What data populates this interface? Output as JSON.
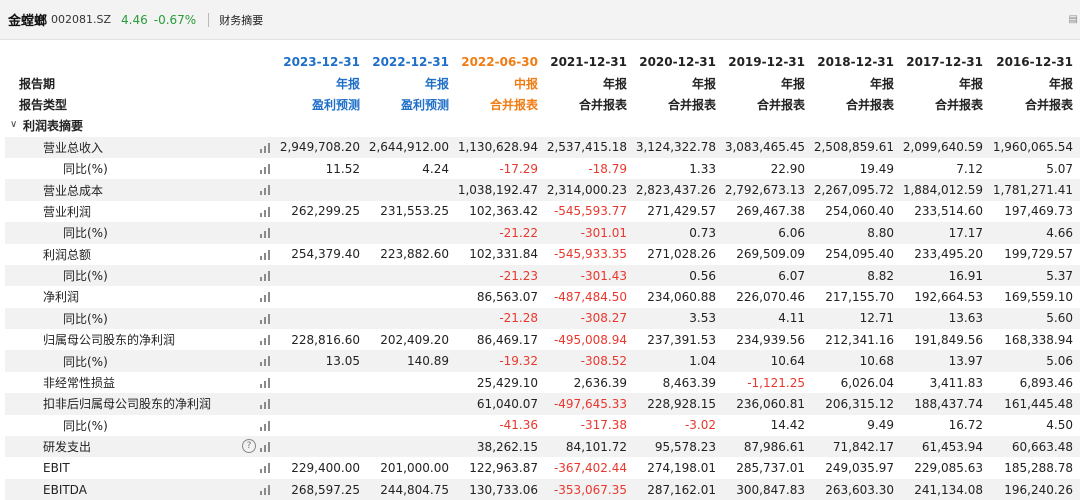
{
  "header": {
    "name": "金螳螂",
    "code": "002081.SZ",
    "price": "4.46",
    "change": "-0.67%",
    "section": "财务摘要"
  },
  "columns": [
    {
      "date": "2023-12-31",
      "period": "年报",
      "type": "盈利预测",
      "color": "blue"
    },
    {
      "date": "2022-12-31",
      "period": "年报",
      "type": "盈利预测",
      "color": "blue"
    },
    {
      "date": "2022-06-30",
      "period": "中报",
      "type": "合并报表",
      "color": "orange"
    },
    {
      "date": "2021-12-31",
      "period": "年报",
      "type": "合并报表",
      "color": "black"
    },
    {
      "date": "2020-12-31",
      "period": "年报",
      "type": "合并报表",
      "color": "black"
    },
    {
      "date": "2019-12-31",
      "period": "年报",
      "type": "合并报表",
      "color": "black"
    },
    {
      "date": "2018-12-31",
      "period": "年报",
      "type": "合并报表",
      "color": "black"
    },
    {
      "date": "2017-12-31",
      "period": "年报",
      "type": "合并报表",
      "color": "black"
    },
    {
      "date": "2016-12-31",
      "period": "年报",
      "type": "合并报表",
      "color": "black"
    }
  ],
  "labels": {
    "period": "报告期",
    "type": "报告类型",
    "group": "利润表摘要"
  },
  "rows": [
    {
      "label": "营业总收入",
      "level": 1,
      "values": [
        "2,949,708.20",
        "2,644,912.00",
        "1,130,628.94",
        "2,537,415.18",
        "3,124,322.78",
        "3,083,465.45",
        "2,508,859.61",
        "2,099,640.59",
        "1,960,065.54"
      ]
    },
    {
      "label": "同比(%)",
      "level": 2,
      "values": [
        "11.52",
        "4.24",
        "-17.29",
        "-18.79",
        "1.33",
        "22.90",
        "19.49",
        "7.12",
        "5.07"
      ]
    },
    {
      "label": "营业总成本",
      "level": 1,
      "values": [
        "",
        "",
        "1,038,192.47",
        "2,314,000.23",
        "2,823,437.26",
        "2,792,673.13",
        "2,267,095.72",
        "1,884,012.59",
        "1,781,271.41"
      ]
    },
    {
      "label": "营业利润",
      "level": 1,
      "values": [
        "262,299.25",
        "231,553.25",
        "102,363.42",
        "-545,593.77",
        "271,429.57",
        "269,467.38",
        "254,060.40",
        "233,514.60",
        "197,469.73"
      ]
    },
    {
      "label": "同比(%)",
      "level": 2,
      "values": [
        "",
        "",
        "-21.22",
        "-301.01",
        "0.73",
        "6.06",
        "8.80",
        "17.17",
        "4.66"
      ]
    },
    {
      "label": "利润总额",
      "level": 1,
      "values": [
        "254,379.40",
        "223,882.60",
        "102,331.84",
        "-545,933.35",
        "271,028.26",
        "269,509.09",
        "254,095.40",
        "233,495.20",
        "199,729.57"
      ]
    },
    {
      "label": "同比(%)",
      "level": 2,
      "values": [
        "",
        "",
        "-21.23",
        "-301.43",
        "0.56",
        "6.07",
        "8.82",
        "16.91",
        "5.37"
      ]
    },
    {
      "label": "净利润",
      "level": 1,
      "values": [
        "",
        "",
        "86,563.07",
        "-487,484.50",
        "234,060.88",
        "226,070.46",
        "217,155.70",
        "192,664.53",
        "169,559.10"
      ]
    },
    {
      "label": "同比(%)",
      "level": 2,
      "values": [
        "",
        "",
        "-21.28",
        "-308.27",
        "3.53",
        "4.11",
        "12.71",
        "13.63",
        "5.60"
      ]
    },
    {
      "label": "归属母公司股东的净利润",
      "level": 1,
      "values": [
        "228,816.60",
        "202,409.20",
        "86,469.17",
        "-495,008.94",
        "237,391.53",
        "234,939.56",
        "212,341.16",
        "191,849.56",
        "168,338.94"
      ]
    },
    {
      "label": "同比(%)",
      "level": 2,
      "values": [
        "13.05",
        "140.89",
        "-19.32",
        "-308.52",
        "1.04",
        "10.64",
        "10.68",
        "13.97",
        "5.06"
      ]
    },
    {
      "label": "非经常性损益",
      "level": 1,
      "values": [
        "",
        "",
        "25,429.10",
        "2,636.39",
        "8,463.39",
        "-1,121.25",
        "6,026.04",
        "3,411.83",
        "6,893.46"
      ]
    },
    {
      "label": "扣非后归属母公司股东的净利润",
      "level": 1,
      "values": [
        "",
        "",
        "61,040.07",
        "-497,645.33",
        "228,928.15",
        "236,060.81",
        "206,315.12",
        "188,437.74",
        "161,445.48"
      ]
    },
    {
      "label": "同比(%)",
      "level": 2,
      "values": [
        "",
        "",
        "-41.36",
        "-317.38",
        "-3.02",
        "14.42",
        "9.49",
        "16.72",
        "4.50"
      ]
    },
    {
      "label": "研发支出",
      "level": 1,
      "help": true,
      "values": [
        "",
        "",
        "38,262.15",
        "84,101.72",
        "95,578.23",
        "87,986.61",
        "71,842.17",
        "61,453.94",
        "60,663.48"
      ]
    },
    {
      "label": "EBIT",
      "level": 1,
      "values": [
        "229,400.00",
        "201,000.00",
        "122,963.87",
        "-367,402.44",
        "274,198.01",
        "285,737.01",
        "249,035.97",
        "229,085.63",
        "185,288.78"
      ]
    },
    {
      "label": "EBITDA",
      "level": 1,
      "values": [
        "268,597.25",
        "244,804.75",
        "130,733.06",
        "-353,067.35",
        "287,162.01",
        "300,847.83",
        "263,603.30",
        "241,134.08",
        "196,240.26"
      ]
    }
  ],
  "colors": {
    "positive": "#2a9d3a",
    "negative": "#e8382e",
    "forecast": "#1f6fc9",
    "interim": "#f07c14"
  },
  "icons": [
    "bar-chart-icon",
    "help-icon",
    "chevron-down-icon"
  ]
}
